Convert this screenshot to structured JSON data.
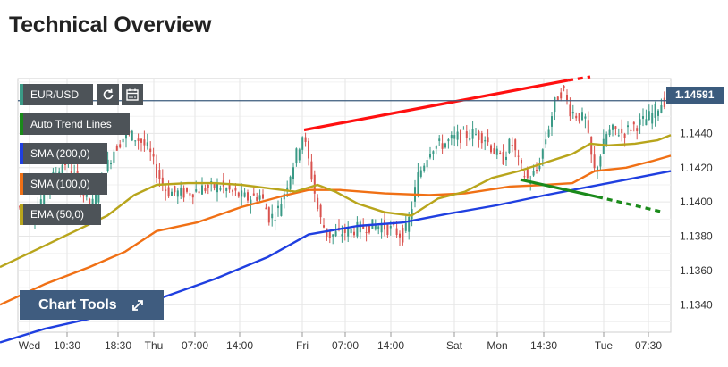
{
  "page": {
    "title": "Technical Overview"
  },
  "toolbar": {
    "symbol": "EUR/USD",
    "legend": [
      {
        "label": "Auto Trend Lines",
        "color": "#1a8a1a"
      },
      {
        "label": "SMA (200,0)",
        "color": "#1f3fe0"
      },
      {
        "label": "SMA (100,0)",
        "color": "#f07015"
      },
      {
        "label": "EMA (50,0)",
        "color": "#b8a51c"
      }
    ],
    "chart_tools_label": "Chart Tools",
    "icons": [
      "refresh-icon",
      "calendar-icon",
      "expand-icon"
    ]
  },
  "colors": {
    "up": "#3a9a86",
    "down": "#d9534f",
    "price_line": "#3b5b7d",
    "grid": "#e6e6e6"
  },
  "chart_data": {
    "type": "candlestick",
    "symbol": "EUR/USD",
    "current_price": "1.14591",
    "y_ticks": [
      "1.1340",
      "1.1360",
      "1.1380",
      "1.1400",
      "1.1420",
      "1.1440"
    ],
    "x_ticks": [
      "Wed",
      "10:30",
      "18:30",
      "Thu",
      "07:00",
      "14:00",
      "Fri",
      "07:00",
      "14:00",
      "Sat",
      "Mon",
      "14:30",
      "Tue",
      "07:30"
    ],
    "ylim": [
      1.1324,
      1.1472
    ],
    "grid": true,
    "series": [
      {
        "name": "SMA (200,0)",
        "points": [
          [
            0,
            1.1318
          ],
          [
            50,
            1.1326
          ],
          [
            110,
            1.1333
          ],
          [
            175,
            1.1343
          ],
          [
            240,
            1.1355
          ],
          [
            300,
            1.1368
          ],
          [
            345,
            1.1381
          ],
          [
            400,
            1.1386
          ],
          [
            450,
            1.1388
          ],
          [
            500,
            1.1393
          ],
          [
            555,
            1.1398
          ],
          [
            610,
            1.1404
          ],
          [
            660,
            1.1409
          ],
          [
            710,
            1.1414
          ],
          [
            750,
            1.1418
          ]
        ]
      },
      {
        "name": "SMA (100,0)",
        "points": [
          [
            0,
            1.134
          ],
          [
            50,
            1.1352
          ],
          [
            100,
            1.1362
          ],
          [
            140,
            1.1371
          ],
          [
            175,
            1.1383
          ],
          [
            220,
            1.1388
          ],
          [
            270,
            1.1397
          ],
          [
            320,
            1.1404
          ],
          [
            345,
            1.1407
          ],
          [
            380,
            1.1407
          ],
          [
            430,
            1.1405
          ],
          [
            480,
            1.1404
          ],
          [
            520,
            1.1405
          ],
          [
            570,
            1.1409
          ],
          [
            610,
            1.141
          ],
          [
            640,
            1.1411
          ],
          [
            665,
            1.1418
          ],
          [
            700,
            1.142
          ],
          [
            730,
            1.1424
          ],
          [
            750,
            1.1427
          ]
        ]
      },
      {
        "name": "EMA (50,0)",
        "points": [
          [
            0,
            1.1362
          ],
          [
            40,
            1.1372
          ],
          [
            80,
            1.1382
          ],
          [
            120,
            1.1392
          ],
          [
            150,
            1.1404
          ],
          [
            175,
            1.141
          ],
          [
            210,
            1.1411
          ],
          [
            240,
            1.1411
          ],
          [
            270,
            1.141
          ],
          [
            300,
            1.1408
          ],
          [
            330,
            1.1406
          ],
          [
            355,
            1.141
          ],
          [
            375,
            1.1406
          ],
          [
            400,
            1.1399
          ],
          [
            430,
            1.1394
          ],
          [
            460,
            1.1392
          ],
          [
            490,
            1.1402
          ],
          [
            520,
            1.1406
          ],
          [
            550,
            1.1414
          ],
          [
            580,
            1.1418
          ],
          [
            610,
            1.1423
          ],
          [
            640,
            1.1428
          ],
          [
            660,
            1.1434
          ],
          [
            680,
            1.1433
          ],
          [
            710,
            1.1434
          ],
          [
            735,
            1.1436
          ],
          [
            750,
            1.1439
          ]
        ]
      }
    ],
    "trend_lines": [
      {
        "type": "resistance",
        "color": "#ff1010",
        "solid": [
          [
            340,
            1.1442
          ],
          [
            635,
            1.1471
          ]
        ],
        "dashed": [
          [
            635,
            1.1471
          ],
          [
            660,
            1.1473
          ]
        ]
      },
      {
        "type": "support",
        "color": "#1a8a1a",
        "solid": [
          [
            582,
            1.1413
          ],
          [
            668,
            1.1403
          ]
        ],
        "dashed": [
          [
            668,
            1.1403
          ],
          [
            742,
            1.1394
          ]
        ]
      }
    ],
    "candle_anchors": [
      [
        20,
        1.1398
      ],
      [
        40,
        1.1392
      ],
      [
        60,
        1.1412
      ],
      [
        75,
        1.1424
      ],
      [
        90,
        1.1412
      ],
      [
        105,
        1.1396
      ],
      [
        115,
        1.141
      ],
      [
        130,
        1.143
      ],
      [
        145,
        1.144
      ],
      [
        160,
        1.1436
      ],
      [
        170,
        1.143
      ],
      [
        178,
        1.1418
      ],
      [
        190,
        1.1406
      ],
      [
        210,
        1.1405
      ],
      [
        230,
        1.1408
      ],
      [
        250,
        1.1409
      ],
      [
        265,
        1.1405
      ],
      [
        280,
        1.1402
      ],
      [
        295,
        1.1404
      ],
      [
        305,
        1.139
      ],
      [
        315,
        1.1396
      ],
      [
        325,
        1.1412
      ],
      [
        335,
        1.1428
      ],
      [
        342,
        1.144
      ],
      [
        350,
        1.142
      ],
      [
        360,
        1.1392
      ],
      [
        370,
        1.138
      ],
      [
        385,
        1.1382
      ],
      [
        400,
        1.1384
      ],
      [
        415,
        1.1386
      ],
      [
        430,
        1.1386
      ],
      [
        445,
        1.1383
      ],
      [
        455,
        1.138
      ],
      [
        462,
        1.1392
      ],
      [
        470,
        1.1414
      ],
      [
        485,
        1.1432
      ],
      [
        500,
        1.1434
      ],
      [
        515,
        1.1438
      ],
      [
        530,
        1.144
      ],
      [
        545,
        1.1438
      ],
      [
        555,
        1.143
      ],
      [
        565,
        1.1424
      ],
      [
        575,
        1.1436
      ],
      [
        585,
        1.142
      ],
      [
        595,
        1.1412
      ],
      [
        605,
        1.142
      ],
      [
        615,
        1.144
      ],
      [
        625,
        1.146
      ],
      [
        633,
        1.1466
      ],
      [
        640,
        1.1454
      ],
      [
        650,
        1.145
      ],
      [
        658,
        1.1448
      ],
      [
        663,
        1.143
      ],
      [
        668,
        1.1418
      ],
      [
        675,
        1.1428
      ],
      [
        682,
        1.144
      ],
      [
        690,
        1.1442
      ],
      [
        700,
        1.144
      ],
      [
        710,
        1.1444
      ],
      [
        720,
        1.1446
      ],
      [
        730,
        1.145
      ],
      [
        740,
        1.1456
      ],
      [
        745,
        1.1459
      ]
    ]
  }
}
